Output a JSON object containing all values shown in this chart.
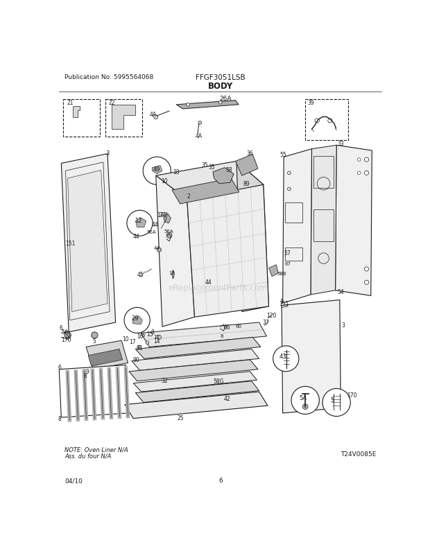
{
  "title": "BODY",
  "pub_no": "Publication No: 5995564068",
  "model": "FFGF3051LSB",
  "date": "04/10",
  "page": "6",
  "note_line1": "NOTE: Oven Liner N/A",
  "note_line2": "Ass. du four N/A",
  "watermark": "eReplacementParts.com",
  "tag": "T24V0085E",
  "bg_color": "#ffffff",
  "fg": "#1a1a1a",
  "gray1": "#d8d8d8",
  "gray2": "#b0b0b0",
  "gray3": "#888888",
  "gray4": "#e8e8e8",
  "gray5": "#f0f0f0"
}
